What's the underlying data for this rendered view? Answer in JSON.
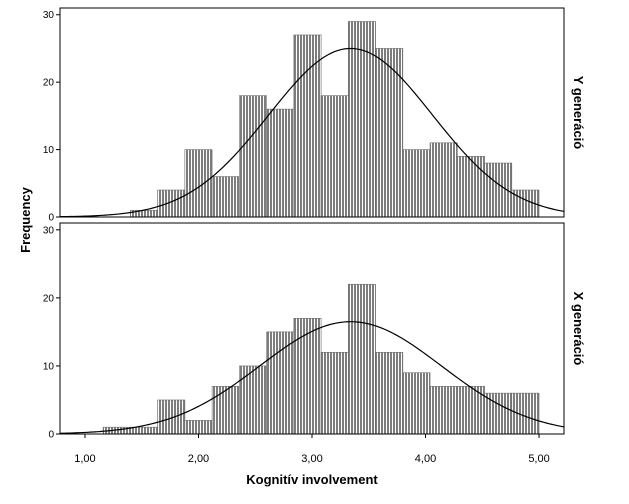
{
  "chart_data": {
    "type": "bar",
    "xlabel": "Kognitív involvement",
    "ylabel": "Frequency",
    "xlim": [
      0.78,
      5.22
    ],
    "x_ticks": [
      "1,00",
      "2,00",
      "3,00",
      "4,00",
      "5,00"
    ],
    "x_tick_values": [
      1,
      2,
      3,
      4,
      5
    ],
    "bin_width": 0.24,
    "bar_fill": "#9a9a9a",
    "panels": [
      {
        "name": "Y generáció",
        "ylim": [
          0,
          31
        ],
        "y_ticks": [
          0,
          10,
          20,
          30
        ],
        "bins": [
          {
            "x0": 1.4,
            "count": 1
          },
          {
            "x0": 1.64,
            "count": 4
          },
          {
            "x0": 1.88,
            "count": 10
          },
          {
            "x0": 2.12,
            "count": 6
          },
          {
            "x0": 2.36,
            "count": 18
          },
          {
            "x0": 2.6,
            "count": 16
          },
          {
            "x0": 2.84,
            "count": 27
          },
          {
            "x0": 3.08,
            "count": 18
          },
          {
            "x0": 3.32,
            "count": 29
          },
          {
            "x0": 3.56,
            "count": 25
          },
          {
            "x0": 3.8,
            "count": 10
          },
          {
            "x0": 4.04,
            "count": 11
          },
          {
            "x0": 4.28,
            "count": 9
          },
          {
            "x0": 4.52,
            "count": 8
          },
          {
            "x0": 4.76,
            "count": 4
          }
        ],
        "normal_curve": {
          "mean": 3.34,
          "sd": 0.72,
          "peak": 25
        }
      },
      {
        "name": "X generáció",
        "ylim": [
          0,
          31
        ],
        "y_ticks": [
          0,
          10,
          20,
          30
        ],
        "bins": [
          {
            "x0": 1.16,
            "count": 1
          },
          {
            "x0": 1.4,
            "count": 1
          },
          {
            "x0": 1.64,
            "count": 5
          },
          {
            "x0": 1.88,
            "count": 2
          },
          {
            "x0": 2.12,
            "count": 7
          },
          {
            "x0": 2.36,
            "count": 10
          },
          {
            "x0": 2.6,
            "count": 15
          },
          {
            "x0": 2.84,
            "count": 17
          },
          {
            "x0": 3.08,
            "count": 12
          },
          {
            "x0": 3.32,
            "count": 22
          },
          {
            "x0": 3.56,
            "count": 12
          },
          {
            "x0": 3.8,
            "count": 9
          },
          {
            "x0": 4.04,
            "count": 7
          },
          {
            "x0": 4.28,
            "count": 7
          },
          {
            "x0": 4.52,
            "count": 6
          },
          {
            "x0": 4.76,
            "count": 6
          }
        ],
        "normal_curve": {
          "mean": 3.34,
          "sd": 0.8,
          "peak": 16.5
        }
      }
    ]
  }
}
